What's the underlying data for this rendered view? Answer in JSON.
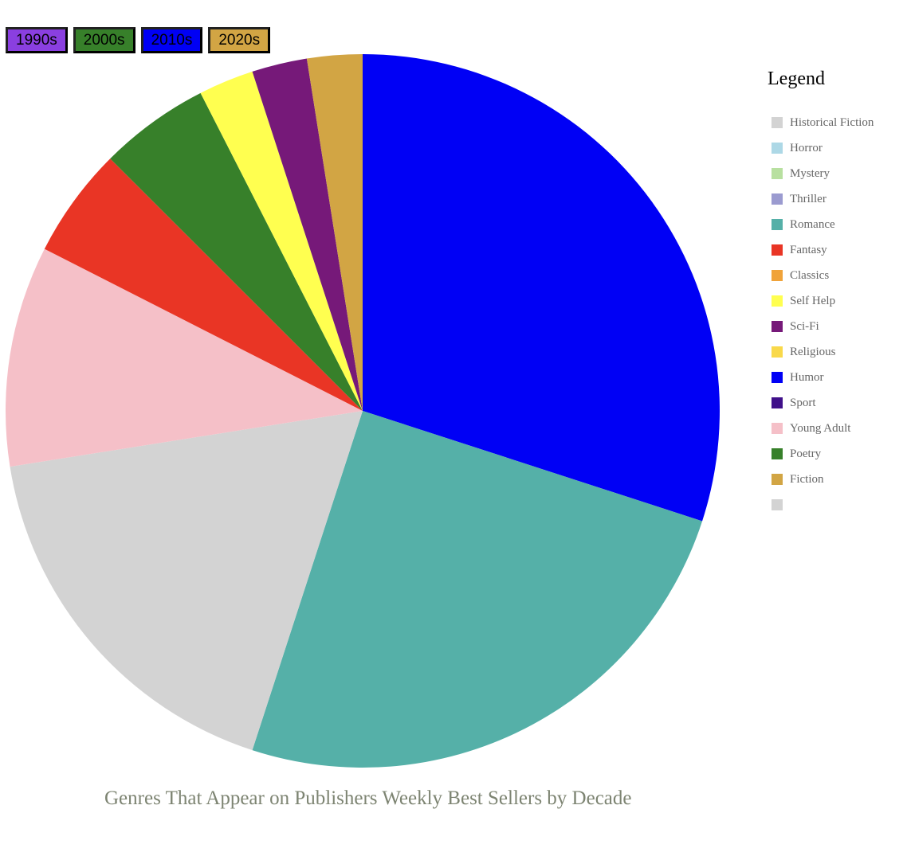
{
  "decade_buttons": [
    {
      "label": "1990s",
      "color": "#8a3fe0"
    },
    {
      "label": "2000s",
      "color": "#37802a"
    },
    {
      "label": "2010s",
      "color": "#0000f5"
    },
    {
      "label": "2020s",
      "color": "#d2a544"
    }
  ],
  "legend": {
    "title": "Legend",
    "items": [
      {
        "label": "Historical Fiction",
        "color": "#d3d3d3"
      },
      {
        "label": "Horror",
        "color": "#add8e6"
      },
      {
        "label": "Mystery",
        "color": "#b8e0a0"
      },
      {
        "label": "Thriller",
        "color": "#9b9bd0"
      },
      {
        "label": "Romance",
        "color": "#55b0a8"
      },
      {
        "label": "Fantasy",
        "color": "#e93525"
      },
      {
        "label": "Classics",
        "color": "#f0a33a"
      },
      {
        "label": "Self Help",
        "color": "#ffff50"
      },
      {
        "label": "Sci-Fi",
        "color": "#761979"
      },
      {
        "label": "Religious",
        "color": "#f9d94a"
      },
      {
        "label": "Humor",
        "color": "#0000f5"
      },
      {
        "label": "Sport",
        "color": "#40108a"
      },
      {
        "label": "Young Adult",
        "color": "#f5c0c8"
      },
      {
        "label": "Poetry",
        "color": "#37802a"
      },
      {
        "label": "Fiction",
        "color": "#d2a544"
      },
      {
        "label": "",
        "color": "#d3d3d3"
      }
    ]
  },
  "chart_data": {
    "type": "pie",
    "title": "Genres That Appear on Publishers Weekly Best Sellers by Decade",
    "start_angle_deg": 0,
    "direction": "clockwise",
    "slices": [
      {
        "label": "Humor",
        "value": 30,
        "color": "#0000f5"
      },
      {
        "label": "Romance",
        "value": 25,
        "color": "#55b0a8"
      },
      {
        "label": "Historical Fiction",
        "value": 17.5,
        "color": "#d3d3d3"
      },
      {
        "label": "Young Adult",
        "value": 10,
        "color": "#f5c0c8"
      },
      {
        "label": "Fantasy",
        "value": 5,
        "color": "#e93525"
      },
      {
        "label": "Poetry",
        "value": 5,
        "color": "#37802a"
      },
      {
        "label": "Self Help",
        "value": 2.5,
        "color": "#ffff50"
      },
      {
        "label": "Sci-Fi",
        "value": 2.5,
        "color": "#761979"
      },
      {
        "label": "Fiction",
        "value": 2.5,
        "color": "#d2a544"
      }
    ]
  }
}
